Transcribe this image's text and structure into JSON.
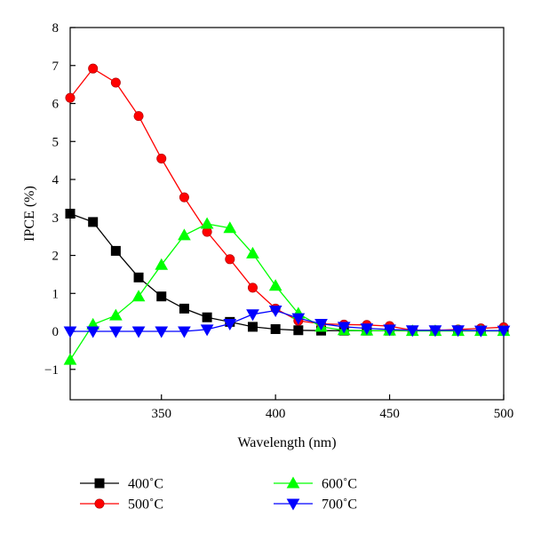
{
  "chart_data": {
    "type": "line",
    "xlabel": "Wavelength (nm)",
    "ylabel": "IPCE (%)",
    "xlim": [
      310,
      500
    ],
    "ylim": [
      -1.8,
      8
    ],
    "x_ticks": [
      "350",
      "400",
      "450",
      "500"
    ],
    "y_ticks": [
      "−1",
      "0",
      "1",
      "2",
      "3",
      "4",
      "5",
      "6",
      "7",
      "8"
    ],
    "x_tick_values": [
      350,
      400,
      450,
      500
    ],
    "y_tick_values": [
      -1,
      0,
      1,
      2,
      3,
      4,
      5,
      6,
      7,
      8
    ],
    "grid": false,
    "legend_position": "bottom",
    "x": [
      310,
      320,
      330,
      340,
      350,
      360,
      370,
      380,
      390,
      400,
      410,
      420,
      430,
      440,
      450,
      460,
      470,
      480,
      490,
      500
    ],
    "series": [
      {
        "name": "400˚C",
        "color": "#000000",
        "marker": "square",
        "values": [
          3.1,
          2.88,
          2.12,
          1.42,
          0.92,
          0.6,
          0.37,
          0.25,
          0.12,
          0.06,
          0.03,
          0.02,
          0.02,
          0.02,
          0.02,
          0.02,
          0.02,
          0.02,
          0.02,
          0.02
        ]
      },
      {
        "name": "500˚C",
        "color": "#ff0000",
        "marker": "circle",
        "values": [
          6.15,
          6.92,
          6.55,
          5.67,
          4.55,
          3.53,
          2.62,
          1.9,
          1.15,
          0.6,
          0.28,
          0.2,
          0.18,
          0.17,
          0.14,
          0.03,
          0.03,
          0.05,
          0.08,
          0.11
        ]
      },
      {
        "name": "600˚C",
        "color": "#00ff00",
        "marker": "triangle-up",
        "values": [
          -0.75,
          0.18,
          0.42,
          0.92,
          1.75,
          2.53,
          2.83,
          2.72,
          2.05,
          1.2,
          0.47,
          0.12,
          0.03,
          0.02,
          0.02,
          0.01,
          0.01,
          0.01,
          0.01,
          0.01
        ]
      },
      {
        "name": "700˚C",
        "color": "#0000ff",
        "marker": "triangle-down",
        "values": [
          0.0,
          0.0,
          0.0,
          0.0,
          0.0,
          0.0,
          0.05,
          0.2,
          0.45,
          0.55,
          0.35,
          0.2,
          0.12,
          0.08,
          0.05,
          0.03,
          0.03,
          0.03,
          0.02,
          0.02
        ]
      }
    ]
  }
}
